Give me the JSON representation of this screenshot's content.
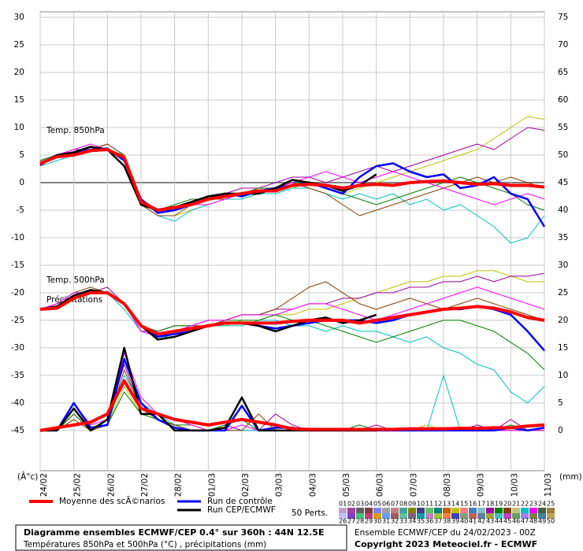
{
  "chart_data": {
    "type": "line",
    "ylim": [
      -52.3,
      31
    ],
    "yticks": [
      30,
      25,
      20,
      15,
      10,
      5,
      0,
      -5,
      -10,
      -15,
      -20,
      -25,
      -30,
      -35,
      -40,
      -45
    ],
    "y2lim": [
      -7.3,
      76
    ],
    "y2ticks": [
      75,
      70,
      65,
      60,
      55,
      50,
      45,
      40,
      35,
      30,
      25,
      20,
      15,
      10,
      5,
      0
    ],
    "y_unit": "(Â°c)",
    "y2_unit": "(mm)",
    "xlim": [
      0,
      360
    ],
    "xticks": [
      {
        "value": 0,
        "label": "24/02"
      },
      {
        "value": 24,
        "label": "25/02"
      },
      {
        "value": 48,
        "label": "26/02"
      },
      {
        "value": 72,
        "label": "27/02"
      },
      {
        "value": 96,
        "label": "28/02"
      },
      {
        "value": 120,
        "label": "01/03"
      },
      {
        "value": 144,
        "label": "02/03"
      },
      {
        "value": 168,
        "label": "03/03"
      },
      {
        "value": 192,
        "label": "04/03"
      },
      {
        "value": 216,
        "label": "05/03"
      },
      {
        "value": 240,
        "label": "06/03"
      },
      {
        "value": 264,
        "label": "07/03"
      },
      {
        "value": 288,
        "label": "08/03"
      },
      {
        "value": 312,
        "label": "09/03"
      },
      {
        "value": 336,
        "label": "10/03"
      },
      {
        "value": 360,
        "label": "11/03"
      }
    ],
    "grid": true,
    "zero_line": true,
    "annotations": [
      "Temp. 850hPa",
      "Temp. 500hPa",
      "Précipitations"
    ],
    "x": [
      0,
      12,
      24,
      36,
      48,
      60,
      72,
      84,
      96,
      108,
      120,
      132,
      144,
      156,
      168,
      180,
      192,
      204,
      216,
      228,
      240,
      252,
      264,
      276,
      288,
      300,
      312,
      324,
      336,
      348,
      360
    ],
    "members": [
      {
        "color": "#c0c000",
        "t850": [
          3,
          5,
          5,
          6,
          6,
          4,
          -4,
          -6,
          -6,
          -5,
          -4,
          -3,
          -3,
          -2,
          -2,
          -1,
          0,
          -1,
          -2,
          -1,
          0,
          1,
          2,
          3,
          4,
          5,
          6,
          8,
          10,
          12,
          11.5
        ],
        "t500": [
          -23,
          -22,
          -21,
          -20,
          -20,
          -22,
          -26,
          -28,
          -28,
          -27,
          -26,
          -26,
          -25,
          -25,
          -24,
          -24,
          -23,
          -23,
          -22,
          -21,
          -20,
          -19,
          -18,
          -18,
          -17,
          -17,
          -16,
          -16,
          -17,
          -18,
          -18
        ],
        "precip": [
          0,
          0,
          2,
          0,
          1,
          8,
          3,
          2,
          1,
          0,
          0,
          0,
          1,
          0,
          0,
          0,
          0,
          0,
          0,
          0,
          0,
          0,
          0,
          1,
          0,
          0,
          0,
          0,
          0,
          0,
          0
        ]
      },
      {
        "color": "#a000a0",
        "t850": [
          4,
          5,
          6,
          6,
          7,
          5,
          -3,
          -5,
          -5,
          -4,
          -3,
          -2,
          -1,
          -1,
          0,
          1,
          1,
          0,
          1,
          2,
          3,
          2,
          3,
          4,
          5,
          6,
          7,
          6,
          8,
          10,
          9.5
        ],
        "t500": [
          -23,
          -22,
          -20,
          -20,
          -19,
          -22,
          -27,
          -27,
          -26,
          -26,
          -25,
          -25,
          -24,
          -24,
          -23,
          -23,
          -22,
          -22,
          -21,
          -21,
          -20,
          -20,
          -19,
          -19,
          -18,
          -18,
          -17,
          -18,
          -17,
          -17,
          -16.5
        ],
        "precip": [
          0,
          0,
          3,
          0,
          2,
          12,
          4,
          2,
          1,
          0,
          0,
          1,
          0,
          0,
          3,
          1,
          0,
          0,
          0,
          0,
          1,
          0,
          0,
          0,
          0,
          0,
          1,
          0,
          2,
          0,
          0
        ]
      },
      {
        "color": "#00c0c0",
        "t850": [
          3,
          4,
          5,
          6,
          6,
          4,
          -4,
          -6,
          -7,
          -5,
          -4,
          -3,
          -3,
          -2,
          -2,
          -1,
          -1,
          -2,
          -3,
          -2,
          -3,
          -2,
          -4,
          -3,
          -5,
          -4,
          -6,
          -8,
          -11,
          -10,
          -6
        ],
        "t500": [
          -23,
          -23,
          -21,
          -20,
          -20,
          -23,
          -27,
          -28,
          -28,
          -27,
          -26,
          -26,
          -26,
          -25,
          -25,
          -26,
          -26,
          -27,
          -26,
          -27,
          -27,
          -28,
          -29,
          -28,
          -30,
          -31,
          -33,
          -34,
          -38,
          -40,
          -37
        ],
        "precip": [
          0,
          0,
          4,
          0,
          1,
          10,
          5,
          3,
          1,
          0,
          0,
          0,
          0,
          0,
          0,
          0,
          0,
          0,
          0,
          0,
          0,
          0,
          0,
          0,
          10,
          0,
          0,
          0,
          0,
          0,
          0
        ]
      },
      {
        "color": "#008000",
        "t850": [
          4,
          5,
          5,
          6,
          6,
          5,
          -3,
          -5,
          -4,
          -3,
          -3,
          -2,
          -2,
          -1,
          -1,
          0,
          0,
          -1,
          -2,
          -3,
          -4,
          -3,
          -2,
          -1,
          0,
          1,
          0,
          -1,
          -2,
          -4,
          -5
        ],
        "t500": [
          -23,
          -22,
          -21,
          -20,
          -20,
          -22,
          -26,
          -27,
          -26,
          -26,
          -26,
          -25,
          -25,
          -25,
          -24,
          -25,
          -25,
          -26,
          -27,
          -28,
          -29,
          -28,
          -27,
          -26,
          -25,
          -25,
          -26,
          -27,
          -29,
          -31,
          -34
        ],
        "precip": [
          0,
          0,
          3,
          0,
          1,
          7,
          3,
          2,
          1,
          1,
          0,
          1,
          2,
          0,
          0,
          0,
          0,
          0,
          0,
          1,
          0,
          0,
          0,
          0,
          0,
          0,
          0,
          0,
          1,
          0,
          0
        ]
      },
      {
        "color": "#804000",
        "t850": [
          3,
          5,
          5,
          6,
          7,
          5,
          -4,
          -6,
          -6,
          -4,
          -3,
          -3,
          -2,
          -2,
          -1,
          0,
          -1,
          -2,
          -4,
          -6,
          -5,
          -4,
          -3,
          -2,
          -1,
          0,
          1,
          0,
          1,
          0,
          -1
        ],
        "t500": [
          -23,
          -22,
          -20,
          -19,
          -20,
          -22,
          -26,
          -28,
          -27,
          -26,
          -26,
          -25,
          -24,
          -24,
          -23,
          -21,
          -19,
          -18,
          -20,
          -22,
          -23,
          -22,
          -21,
          -22,
          -23,
          -22,
          -21,
          -22,
          -23,
          -24,
          -25
        ],
        "precip": [
          0,
          0,
          2,
          0,
          1,
          11,
          4,
          2,
          1,
          0,
          0,
          0,
          0,
          3,
          0,
          0,
          0,
          0,
          0,
          0,
          0,
          0,
          0,
          0,
          0,
          0,
          0,
          0,
          0,
          0,
          0
        ]
      },
      {
        "color": "#ff00ff",
        "t850": [
          3,
          5,
          6,
          7,
          6,
          4,
          -4,
          -5,
          -5,
          -4,
          -4,
          -3,
          -2,
          -2,
          -1,
          0,
          1,
          2,
          1,
          0,
          1,
          2,
          1,
          0,
          -1,
          -2,
          -3,
          -4,
          -3,
          -2,
          -3
        ],
        "t500": [
          -23,
          -22,
          -20,
          -20,
          -20,
          -22,
          -27,
          -28,
          -27,
          -26,
          -25,
          -25,
          -24,
          -24,
          -24,
          -23,
          -22,
          -22,
          -23,
          -24,
          -25,
          -24,
          -23,
          -22,
          -21,
          -20,
          -19,
          -20,
          -21,
          -22,
          -23
        ],
        "precip": [
          0,
          0,
          5,
          1,
          2,
          14,
          6,
          3,
          2,
          1,
          0,
          0,
          1,
          0,
          0,
          0,
          0,
          0,
          0,
          0,
          0,
          0,
          0,
          0,
          0,
          0,
          0,
          0,
          0,
          0,
          0
        ]
      }
    ],
    "series": [
      {
        "name": "Run de contrôle",
        "color": "#0000ff",
        "t850": [
          3.5,
          4.8,
          5.2,
          6,
          6.2,
          4,
          -3,
          -5.5,
          -5,
          -4,
          -3,
          -2,
          -2.5,
          -1.5,
          -1,
          -0.5,
          0,
          -1,
          -2,
          1,
          3,
          3.5,
          2,
          1,
          1.5,
          -1,
          -0.5,
          1,
          -2,
          -3,
          -8
        ],
        "t500": [
          -23,
          -22.5,
          -21,
          -20,
          -20,
          -22,
          -26,
          -28,
          -27.5,
          -27,
          -26,
          -25.5,
          -25.5,
          -26,
          -26.5,
          -26,
          -25.5,
          -25,
          -25,
          -25,
          -25.5,
          -25,
          -24,
          -23.5,
          -23,
          -23,
          -22.5,
          -23,
          -24,
          -27,
          -30.5
        ],
        "precip": [
          0,
          0,
          5,
          0.5,
          1,
          13,
          5,
          2,
          0.5,
          0,
          0,
          0,
          4.5,
          0,
          0.5,
          0.5,
          0,
          0,
          0,
          0,
          0,
          0,
          0,
          0,
          0,
          0,
          0,
          0,
          0.5,
          0,
          0.5
        ]
      },
      {
        "name": "Run CEP/ECMWF",
        "color": "#000000",
        "t850": [
          3.3,
          5,
          5.5,
          6.5,
          6,
          3,
          -4,
          -5,
          -4.5,
          -3.5,
          -2.5,
          -2,
          -2,
          -2,
          -1,
          0.5,
          0,
          -0.5,
          -1.5,
          -0.5,
          1.5,
          null,
          null,
          null,
          null,
          null,
          null,
          null,
          null,
          null,
          null
        ],
        "t500": [
          -23,
          -22.5,
          -20.5,
          -19.5,
          -20,
          -22,
          -26,
          -28.5,
          -28,
          -27,
          -26,
          -25.5,
          -25.5,
          -26,
          -27,
          -26,
          -25,
          -24.5,
          -25.5,
          -25,
          -24,
          null,
          null,
          null,
          null,
          null,
          null,
          null,
          null,
          null,
          null
        ],
        "precip": [
          0,
          0,
          4,
          0,
          2,
          15,
          3,
          3,
          0,
          0,
          0,
          0.5,
          6,
          0,
          0,
          0,
          0,
          0,
          0,
          0,
          0,
          null,
          null,
          null,
          null,
          null,
          null,
          null,
          null,
          null,
          null
        ]
      },
      {
        "name": "Moyenne des scÃ©narios",
        "color": "#ff0000",
        "t850": [
          3.5,
          4.7,
          5,
          5.8,
          6,
          4.5,
          -3.5,
          -5,
          -4.5,
          -4,
          -3,
          -2.5,
          -2,
          -1.5,
          -1.5,
          -0.5,
          -0.3,
          -0.5,
          -1,
          -0.5,
          -0.3,
          -0.5,
          0,
          0.2,
          0.3,
          0,
          -0.3,
          -0.2,
          -0.5,
          -0.5,
          -0.8
        ],
        "t500": [
          -23,
          -22.8,
          -21,
          -20,
          -20,
          -22,
          -26,
          -27.5,
          -27,
          -26.5,
          -26,
          -25.5,
          -25.5,
          -25.5,
          -25.5,
          -25.2,
          -25,
          -25,
          -25,
          -25.5,
          -25,
          -24.5,
          -24,
          -23.5,
          -23,
          -22.8,
          -22.5,
          -22.8,
          -23.5,
          -24.5,
          -25
        ],
        "precip": [
          0,
          0.5,
          1,
          1.5,
          3,
          9,
          4,
          3,
          2,
          1.5,
          1,
          1.5,
          2,
          1.5,
          1,
          0.3,
          0.2,
          0.2,
          0.2,
          0.2,
          0.2,
          0.2,
          0.3,
          0.3,
          0.3,
          0.4,
          0.4,
          0.5,
          0.5,
          0.8,
          1
        ]
      }
    ],
    "perturbations": {
      "label": "50 Perts.",
      "members": [
        {
          "id": "01",
          "color": "#c0a0c0"
        },
        {
          "id": "02",
          "color": "#a040a0"
        },
        {
          "id": "03",
          "color": "#606060"
        },
        {
          "id": "04",
          "color": "#804040"
        },
        {
          "id": "05",
          "color": "#8080ff"
        },
        {
          "id": "06",
          "color": "#a0a0a0"
        },
        {
          "id": "07",
          "color": "#c08080"
        },
        {
          "id": "08",
          "color": "#40a0a0"
        },
        {
          "id": "09",
          "color": "#808000"
        },
        {
          "id": "10",
          "color": "#404080"
        },
        {
          "id": "11",
          "color": "#60c060"
        },
        {
          "id": "12",
          "color": "#008080"
        },
        {
          "id": "13",
          "color": "#c06000"
        },
        {
          "id": "14",
          "color": "#c0c000"
        },
        {
          "id": "15",
          "color": "#ff8080"
        },
        {
          "id": "16",
          "color": "#4080c0"
        },
        {
          "id": "17",
          "color": "#80c0c0"
        },
        {
          "id": "18",
          "color": "#a000a0"
        },
        {
          "id": "19",
          "color": "#008000"
        },
        {
          "id": "20",
          "color": "#804000"
        },
        {
          "id": "21",
          "color": "#c0c080"
        },
        {
          "id": "22",
          "color": "#00c0c0"
        },
        {
          "id": "23",
          "color": "#ff00ff"
        },
        {
          "id": "24",
          "color": "#406040"
        },
        {
          "id": "25",
          "color": "#a08040"
        },
        {
          "id": "26",
          "color": "#c0c0ff"
        },
        {
          "id": "27",
          "color": "#8040c0"
        },
        {
          "id": "28",
          "color": "#40c080"
        },
        {
          "id": "29",
          "color": "#c04080"
        },
        {
          "id": "30",
          "color": "#e0a000"
        },
        {
          "id": "31",
          "color": "#60a0ff"
        },
        {
          "id": "32",
          "color": "#a06060"
        },
        {
          "id": "33",
          "color": "#60c0a0"
        },
        {
          "id": "34",
          "color": "#806080"
        },
        {
          "id": "35",
          "color": "#00a0a0"
        },
        {
          "id": "36",
          "color": "#c080c0"
        },
        {
          "id": "37",
          "color": "#a0c040"
        },
        {
          "id": "38",
          "color": "#ff8040"
        },
        {
          "id": "39",
          "color": "#4040c0"
        },
        {
          "id": "40",
          "color": "#80a080"
        },
        {
          "id": "41",
          "color": "#c06060"
        },
        {
          "id": "42",
          "color": "#6080a0"
        },
        {
          "id": "43",
          "color": "#a0a040"
        },
        {
          "id": "44",
          "color": "#40c0c0"
        },
        {
          "id": "45",
          "color": "#c040c0"
        },
        {
          "id": "46",
          "color": "#60a060"
        },
        {
          "id": "47",
          "color": "#a080ff"
        },
        {
          "id": "48",
          "color": "#808040"
        },
        {
          "id": "49",
          "color": "#4080a0"
        },
        {
          "id": "50",
          "color": "#c0a060"
        }
      ]
    },
    "footer": {
      "title": "Diagramme ensembles ECMWF/CEP 0.4° sur 360h : 44N 12.5E",
      "subtitle": "Températures 850hPa et 500hPa (°C) , précipitations (mm)",
      "run": "Ensemble ECMWF/CEP du 24/02/2023 - 00Z",
      "copyright": "Copyright 2023 Meteociel.fr - ECMWF"
    }
  }
}
